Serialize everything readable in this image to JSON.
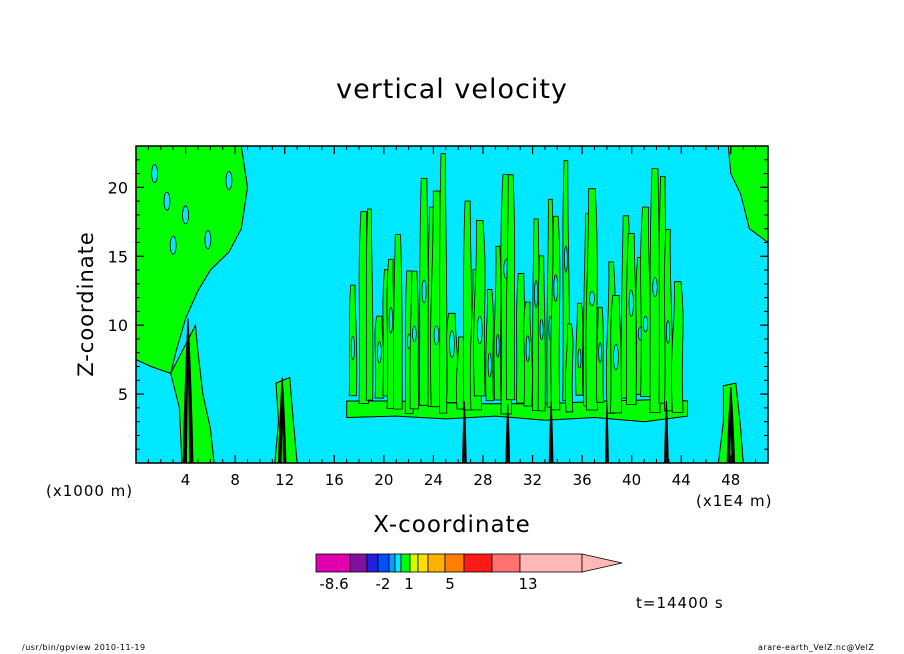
{
  "chart_data": {
    "type": "contour",
    "title": "vertical velocity",
    "xlabel": "X-coordinate",
    "ylabel": "Z-coordinate",
    "x_unit": "(x1000 m)",
    "x_scale": "(x1E4 m)",
    "xlim": [
      0,
      51
    ],
    "ylim": [
      0,
      23
    ],
    "x_ticks": [
      4,
      8,
      12,
      16,
      20,
      24,
      28,
      32,
      36,
      40,
      44,
      48
    ],
    "y_ticks": [
      5,
      10,
      15,
      20
    ],
    "x_minor_ticks": [
      1,
      2,
      3,
      5,
      6,
      7,
      9,
      10,
      11,
      13,
      14,
      15,
      17,
      18,
      19,
      21,
      22,
      23,
      25,
      26,
      27,
      29,
      30,
      31,
      33,
      34,
      35,
      37,
      38,
      39,
      41,
      42,
      43,
      45,
      46,
      47,
      49,
      50
    ],
    "y_minor_ticks": [
      1,
      2,
      3,
      4,
      6,
      7,
      8,
      9,
      11,
      12,
      13,
      14,
      16,
      17,
      18,
      19,
      21,
      22
    ],
    "background_fill": "#00e8ff",
    "positive_fill": "#00ff00",
    "contour_line_color": "#000000",
    "regions": [
      {
        "name": "upper-left",
        "level": "positive",
        "outline": [
          [
            0,
            23
          ],
          [
            8.5,
            23
          ],
          [
            9,
            20
          ],
          [
            8.5,
            17
          ],
          [
            7.5,
            15.3
          ],
          [
            6,
            14
          ],
          [
            5,
            12.5
          ],
          [
            4,
            10.5
          ],
          [
            3.2,
            8
          ],
          [
            2.8,
            6.5
          ],
          [
            1.2,
            7
          ],
          [
            0,
            7.5
          ]
        ]
      },
      {
        "name": "upper-right",
        "level": "positive",
        "outline": [
          [
            47.8,
            23
          ],
          [
            51,
            23
          ],
          [
            51,
            16
          ],
          [
            49.5,
            17
          ],
          [
            48.8,
            19.5
          ],
          [
            48,
            21
          ]
        ]
      },
      {
        "name": "updraft-x4",
        "level": "positive",
        "outline": [
          [
            2.8,
            6.5
          ],
          [
            3.5,
            4
          ],
          [
            3.7,
            0
          ],
          [
            6.3,
            0
          ],
          [
            6,
            2.5
          ],
          [
            5.4,
            5
          ],
          [
            5,
            8
          ],
          [
            4.8,
            10
          ]
        ]
      },
      {
        "name": "updraft-x12",
        "level": "positive",
        "outline": [
          [
            11.3,
            5.8
          ],
          [
            11.5,
            3
          ],
          [
            11.2,
            0
          ],
          [
            13,
            0
          ],
          [
            12.7,
            3
          ],
          [
            12.4,
            6.2
          ]
        ]
      },
      {
        "name": "updraft-x48",
        "level": "positive",
        "outline": [
          [
            47.4,
            5.6
          ],
          [
            47.4,
            3
          ],
          [
            47,
            0
          ],
          [
            49,
            0
          ],
          [
            48.8,
            2.5
          ],
          [
            48.4,
            5.8
          ]
        ]
      },
      {
        "name": "low-band",
        "level": "positive",
        "outline": [
          [
            17,
            4.5
          ],
          [
            21,
            4.5
          ],
          [
            24,
            4.4
          ],
          [
            28,
            4.3
          ],
          [
            33,
            4.3
          ],
          [
            38,
            4.5
          ],
          [
            42,
            4.6
          ],
          [
            44.5,
            4.5
          ],
          [
            44.5,
            3.4
          ],
          [
            41,
            3
          ],
          [
            37,
            3.3
          ],
          [
            33,
            3.1
          ],
          [
            29,
            3.4
          ],
          [
            25,
            3.2
          ],
          [
            21,
            3.4
          ],
          [
            17,
            3.3
          ]
        ]
      }
    ],
    "streaks": {
      "x_start": 17.5,
      "x_end": 44,
      "z_low": 3.5,
      "z_high": 22.5,
      "count": 44
    },
    "colorbar": {
      "colors": [
        "#e000b0",
        "#8010a0",
        "#2020e0",
        "#0050ff",
        "#00a0ff",
        "#00e8ff",
        "#00ff00",
        "#d0ff00",
        "#ffe000",
        "#ffb000",
        "#ff8000",
        "#ff1a1a",
        "#ff7070",
        "#ffb8b8"
      ],
      "labels": [
        "-8.6",
        "-2",
        "1",
        "5",
        "13"
      ]
    }
  },
  "title": "vertical velocity",
  "timestamp": "t=14400 s",
  "footer_left": "/usr/bin/gpview  2010-11-19",
  "footer_right": "arare-earth_VelZ.nc@VelZ"
}
